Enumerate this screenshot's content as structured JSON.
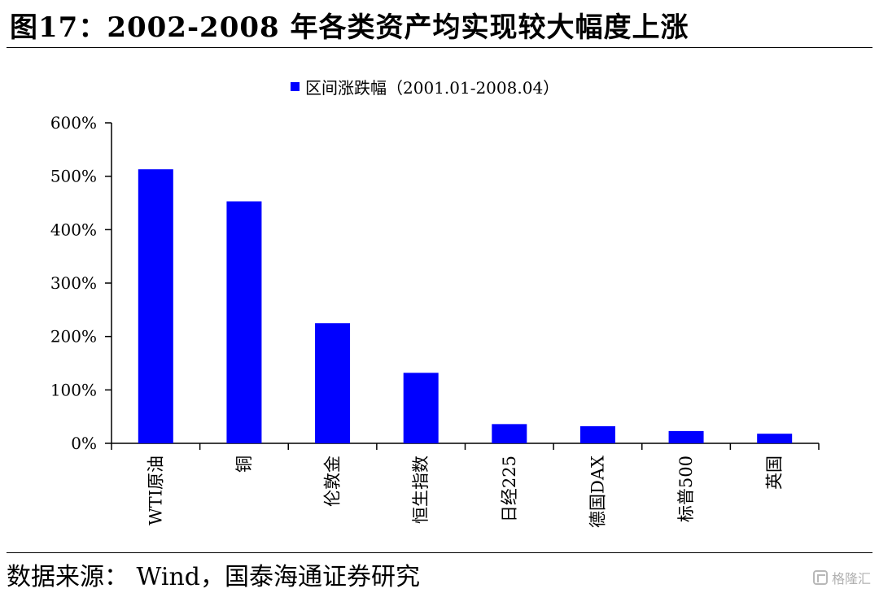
{
  "header": {
    "title": "图17：2002-2008 年各类资产均实现较大幅度上涨"
  },
  "footer": {
    "source": "数据来源： Wind，国泰海通证券研究",
    "watermark": "格隆汇"
  },
  "chart_data": {
    "type": "bar",
    "categories": [
      "WTI原油",
      "铜",
      "伦敦金",
      "恒生指数",
      "日经225",
      "德国DAX",
      "标普500",
      "英国"
    ],
    "series": [
      {
        "name": "区间涨跌幅（2001.01-2008.04）",
        "values": [
          513,
          453,
          225,
          132,
          36,
          32,
          23,
          18
        ],
        "color": "#0000ff"
      }
    ],
    "ylim": [
      0,
      600
    ],
    "yticks": [
      0,
      100,
      200,
      300,
      400,
      500,
      600
    ],
    "ytick_labels": [
      "0%",
      "100%",
      "200%",
      "300%",
      "400%",
      "500%",
      "600%"
    ],
    "xlabel": "",
    "ylabel": "",
    "legend_position": "top-center",
    "grid": false
  }
}
